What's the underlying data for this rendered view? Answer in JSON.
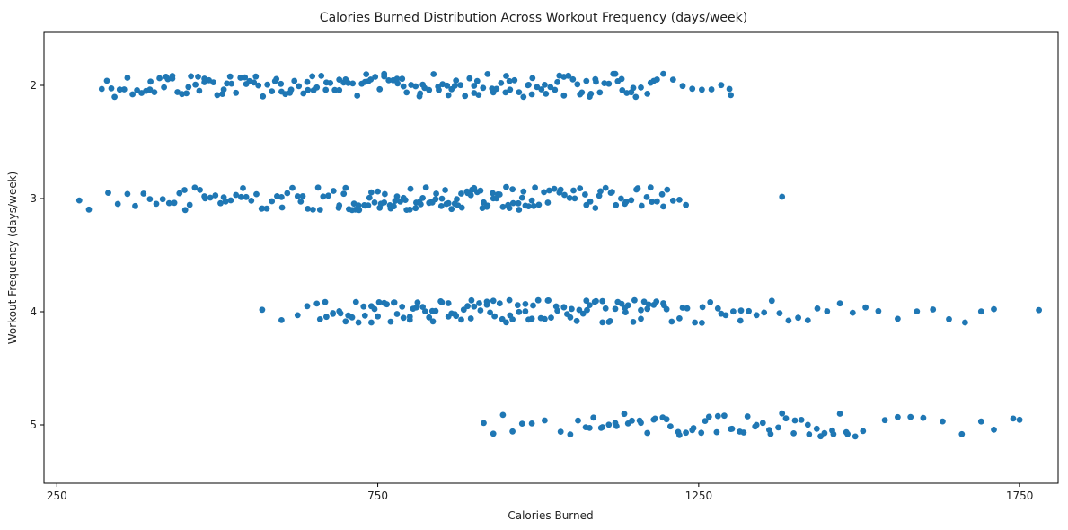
{
  "chart_data": {
    "type": "scatter",
    "title": "Calories Burned Distribution Across Workout Frequency (days/week)",
    "xlabel": "Calories Burned",
    "ylabel": "Workout Frequency (days/week)",
    "xlim": [
      230,
      1810
    ],
    "x_ticks": [
      250,
      750,
      1250,
      1750
    ],
    "y_categories": [
      "2",
      "3",
      "4",
      "5"
    ],
    "grid": false,
    "legend": "none",
    "point_color": "#1f77b4",
    "series": [
      {
        "category": "2",
        "x": [
          320,
          328,
          335,
          340,
          348,
          355,
          360,
          368,
          375,
          382,
          389,
          396,
          402,
          410,
          417,
          423,
          430,
          438,
          445,
          452,
          459,
          466,
          472,
          480,
          487,
          494,
          500,
          508,
          515,
          522,
          529,
          536,
          543,
          550,
          557,
          564,
          571,
          578,
          585,
          592,
          599,
          606,
          613,
          620,
          627,
          634,
          641,
          648,
          655,
          662,
          669,
          676,
          683,
          690,
          697,
          704,
          711,
          718,
          725,
          732,
          739,
          746,
          753,
          760,
          767,
          774,
          781,
          788,
          795,
          802,
          809,
          816,
          823,
          830,
          837,
          844,
          851,
          858,
          865,
          872,
          879,
          886,
          893,
          900,
          907,
          914,
          921,
          928,
          935,
          942,
          949,
          956,
          963,
          970,
          977,
          984,
          991,
          998,
          1005,
          1012,
          1019,
          1026,
          1033,
          1040,
          1047,
          1054,
          1061,
          1068,
          1075,
          1082,
          1089,
          1096,
          1103,
          1110,
          1117,
          1124,
          1131,
          1138,
          1145,
          1152,
          1160,
          1170,
          1180,
          1195,
          1210,
          1225,
          1240,
          1255,
          1270,
          1285,
          1298,
          1300,
          395,
          420,
          455,
          480,
          510,
          545,
          590,
          615,
          640,
          670,
          700,
          735,
          760,
          790,
          815,
          845,
          870,
          900,
          930,
          955,
          985,
          1010,
          1040,
          1065,
          1090,
          1120,
          1148,
          1175,
          430,
          470,
          520,
          560,
          600,
          650,
          690,
          730,
          780,
          820,
          860,
          905,
          950,
          990,
          1030,
          1080,
          1130,
          1185
        ]
      },
      {
        "category": "3",
        "x": [
          285,
          300,
          330,
          345,
          360,
          372,
          385,
          395,
          405,
          415,
          425,
          433,
          441,
          449,
          457,
          465,
          473,
          481,
          489,
          497,
          505,
          513,
          521,
          529,
          537,
          545,
          553,
          561,
          569,
          577,
          585,
          593,
          601,
          609,
          617,
          625,
          633,
          641,
          649,
          657,
          665,
          673,
          681,
          689,
          697,
          705,
          713,
          721,
          729,
          737,
          745,
          753,
          761,
          769,
          777,
          785,
          793,
          801,
          809,
          817,
          825,
          833,
          841,
          849,
          857,
          865,
          873,
          881,
          889,
          897,
          905,
          913,
          921,
          929,
          937,
          945,
          953,
          961,
          969,
          977,
          985,
          993,
          1001,
          1009,
          1017,
          1025,
          1033,
          1041,
          1049,
          1057,
          1065,
          1073,
          1081,
          1089,
          1097,
          1105,
          1113,
          1121,
          1129,
          1137,
          1145,
          1153,
          1161,
          1169,
          1177,
          1185,
          1193,
          1201,
          1210,
          1220,
          1230,
          1380,
          700,
          710,
          720,
          730,
          740,
          750,
          760,
          770,
          780,
          790,
          800,
          810,
          820,
          830,
          840,
          850,
          860,
          870,
          880,
          890,
          900,
          910,
          920,
          930,
          940,
          950,
          960,
          970,
          980,
          990,
          715,
          735,
          755,
          775,
          795,
          815,
          835,
          855,
          875,
          895,
          915,
          935,
          955,
          975,
          995,
          1015,
          1035,
          1055,
          450,
          480,
          510,
          540,
          570,
          600,
          630,
          660,
          690,
          1075,
          1095,
          1115,
          1135,
          1155,
          1175,
          1195
        ]
      },
      {
        "category": "4",
        "x": [
          570,
          600,
          625,
          640,
          655,
          668,
          680,
          692,
          704,
          716,
          728,
          740,
          752,
          764,
          776,
          788,
          800,
          812,
          824,
          836,
          848,
          860,
          872,
          884,
          896,
          908,
          920,
          932,
          944,
          956,
          968,
          980,
          992,
          1004,
          1016,
          1028,
          1040,
          1052,
          1064,
          1076,
          1088,
          1100,
          1112,
          1124,
          1136,
          1148,
          1160,
          1172,
          1184,
          1196,
          1208,
          1220,
          1232,
          1244,
          1256,
          1268,
          1280,
          1292,
          1304,
          1316,
          1328,
          1340,
          1352,
          1364,
          1376,
          1390,
          1405,
          1420,
          1435,
          1450,
          1470,
          1490,
          1510,
          1530,
          1560,
          1590,
          1615,
          1640,
          1665,
          1690,
          1710,
          1780,
          660,
          680,
          700,
          720,
          740,
          760,
          780,
          800,
          820,
          840,
          860,
          880,
          900,
          920,
          940,
          960,
          980,
          1000,
          1020,
          1040,
          1060,
          1080,
          1100,
          1120,
          1140,
          1160,
          1180,
          1200,
          670,
          690,
          710,
          730,
          750,
          770,
          790,
          810,
          830,
          850,
          870,
          890,
          910,
          930,
          950,
          970,
          990,
          1010,
          1030,
          1050,
          1070,
          1090,
          1110,
          1130,
          1150,
          1170,
          745,
          775,
          805,
          835,
          865,
          895,
          925,
          955,
          985,
          1015,
          1045,
          1075,
          1105,
          1135,
          1165,
          1195,
          1225,
          1255,
          1285,
          1315
        ]
      },
      {
        "category": "5",
        "x": [
          915,
          930,
          945,
          960,
          975,
          990,
          1010,
          1035,
          1050,
          1062,
          1074,
          1086,
          1098,
          1110,
          1122,
          1134,
          1146,
          1158,
          1170,
          1182,
          1194,
          1206,
          1218,
          1230,
          1242,
          1254,
          1266,
          1278,
          1290,
          1302,
          1314,
          1326,
          1338,
          1350,
          1362,
          1374,
          1386,
          1398,
          1410,
          1422,
          1434,
          1446,
          1458,
          1470,
          1482,
          1494,
          1506,
          1540,
          1560,
          1580,
          1600,
          1630,
          1660,
          1690,
          1710,
          1740,
          1750,
          1080,
          1100,
          1120,
          1140,
          1160,
          1180,
          1200,
          1220,
          1240,
          1260,
          1280,
          1300,
          1320,
          1340,
          1360,
          1380,
          1400,
          1420,
          1440,
          1460,
          1480
        ]
      }
    ]
  }
}
